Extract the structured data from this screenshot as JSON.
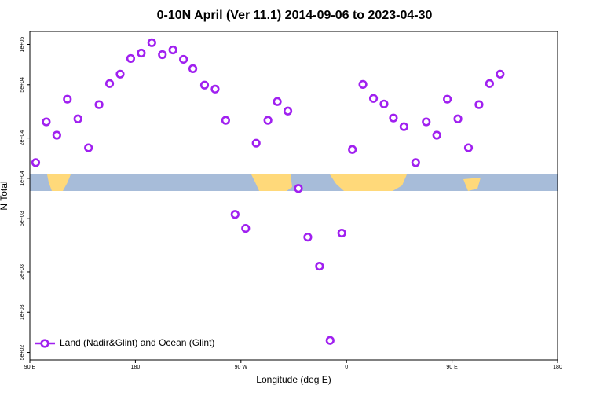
{
  "chart_data": {
    "type": "scatter",
    "title": "0-10N April (Ver 11.1)   2014-09-06 to 2023-04-30",
    "x_label": "Longitude (deg E)",
    "y_label": "N Total",
    "log_y": true,
    "legend_position": "bottom-left",
    "xlim": [
      90,
      540
    ],
    "xticks": [
      {
        "value": 90,
        "label": "90 E"
      },
      180,
      {
        "value": 270,
        "label": "90 W"
      },
      {
        "value": 360,
        "label": "0"
      },
      {
        "value": 450,
        "label": "90 E"
      },
      {
        "value": 540,
        "label": "180"
      }
    ],
    "ylim": [
      440,
      125000
    ],
    "yticks": [
      {
        "value": 500,
        "label": "5e+02"
      },
      {
        "value": 1000,
        "label": "1e+03"
      },
      {
        "value": 2000,
        "label": "2e+03"
      },
      {
        "value": 5000,
        "label": "5e+03"
      },
      {
        "value": 10000,
        "label": "1e+04"
      },
      {
        "value": 20000,
        "label": "2e+04"
      },
      {
        "value": 50000,
        "label": "5e+04"
      },
      {
        "value": 100000,
        "label": "1e+05"
      }
    ],
    "series": [
      {
        "name": "Land (Nadir&Glint) and Ocean (Glint)",
        "color": "#a020f0",
        "x": [
          95,
          104,
          113,
          122,
          131,
          140,
          149,
          158,
          167,
          176,
          185,
          194,
          203,
          212,
          221,
          229,
          239,
          248,
          257,
          265,
          274,
          283,
          293,
          301,
          310,
          319,
          327,
          337,
          346,
          356,
          365,
          374,
          383,
          392,
          400,
          409,
          419,
          428,
          437,
          446,
          455,
          464,
          473,
          482,
          491
        ],
        "values": [
          13100,
          26400,
          21000,
          39000,
          27800,
          16900,
          35500,
          51000,
          60000,
          78500,
          86200,
          103000,
          83900,
          91000,
          77400,
          65900,
          49700,
          46400,
          27100,
          5380,
          4230,
          18300,
          27100,
          37400,
          31800,
          8400,
          3640,
          2210,
          615,
          3900,
          16400,
          50300,
          39500,
          35900,
          28200,
          24300,
          13100,
          26400,
          21000,
          39000,
          27800,
          16900,
          35500,
          51000,
          60000
        ]
      }
    ]
  }
}
